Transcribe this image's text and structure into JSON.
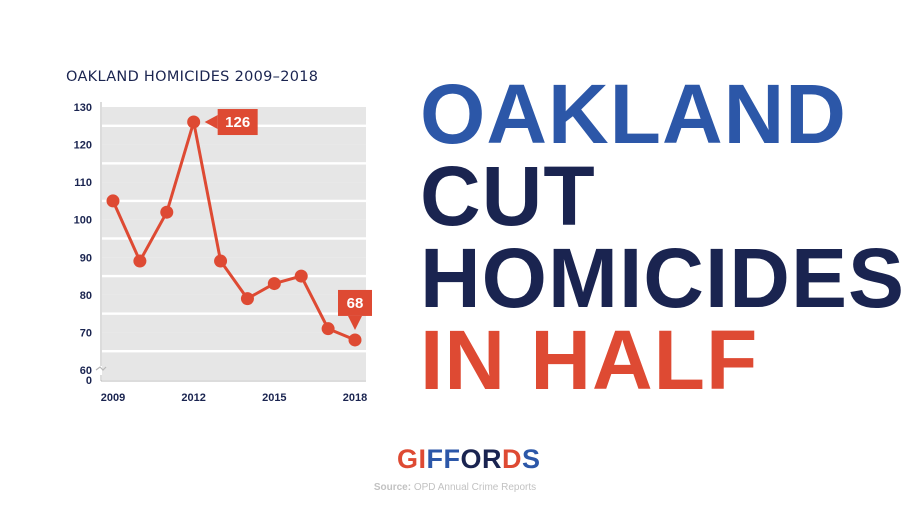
{
  "colors": {
    "navy": "#1a2450",
    "blue": "#2c57a8",
    "red": "#de4a33",
    "band": "#e6e6e6",
    "stripe": "#ffffff"
  },
  "headline": {
    "line1": "OAKLAND",
    "line2": "CUT",
    "line3": "HOMICIDES",
    "line4": "IN HALF"
  },
  "logo": {
    "letters": [
      {
        "char": "G",
        "color": "#de4a33"
      },
      {
        "char": "I",
        "color": "#de4a33"
      },
      {
        "char": "F",
        "color": "#2c57a8"
      },
      {
        "char": "F",
        "color": "#2c57a8"
      },
      {
        "char": "O",
        "color": "#1a2450"
      },
      {
        "char": "R",
        "color": "#1a2450"
      },
      {
        "char": "D",
        "color": "#de4a33"
      },
      {
        "char": "S",
        "color": "#2c57a8"
      }
    ]
  },
  "source": {
    "label": "Source:",
    "text": " OPD Annual Crime Reports"
  },
  "chart_data": {
    "type": "line",
    "title": "OAKLAND HOMICIDES 2009–2018",
    "x": [
      2009,
      2010,
      2011,
      2012,
      2013,
      2014,
      2015,
      2016,
      2017,
      2018
    ],
    "values": [
      105,
      89,
      102,
      126,
      89,
      79,
      83,
      85,
      71,
      68
    ],
    "x_tick_labels": [
      "2009",
      "2012",
      "2015",
      "2018"
    ],
    "x_tick_values": [
      2009,
      2012,
      2015,
      2018
    ],
    "y_tick_labels": [
      "130",
      "120",
      "110",
      "100",
      "90",
      "80",
      "70",
      "60"
    ],
    "y_tick_values": [
      130,
      120,
      110,
      100,
      90,
      80,
      70,
      60
    ],
    "y_zero_label": "0",
    "ylim": [
      60,
      130
    ],
    "axis_break": true,
    "grid": "alternating bands",
    "callouts": [
      {
        "x": 2012,
        "label": "126"
      },
      {
        "x": 2018,
        "label": "68"
      }
    ]
  }
}
